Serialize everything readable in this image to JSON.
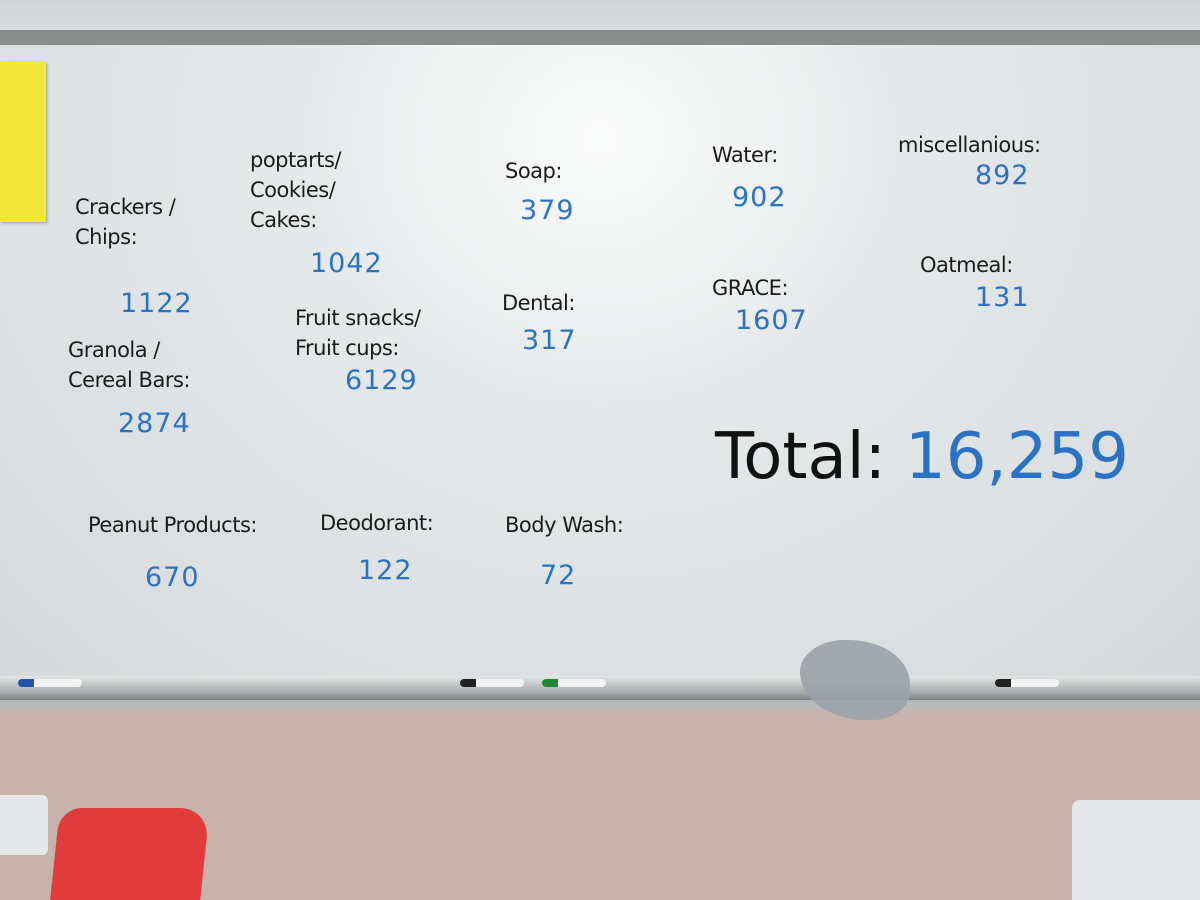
{
  "items": [
    {
      "label": "Crackers /\nChips:",
      "count": "1122"
    },
    {
      "label": "Granola /\nCereal Bars:",
      "count": "2874"
    },
    {
      "label": "Peanut Products:",
      "count": "670"
    },
    {
      "label": "poptarts/\nCookies/\nCakes:",
      "count": "1042"
    },
    {
      "label": "Fruit snacks/\nFruit cups:",
      "count": "6129"
    },
    {
      "label": "Deodorant:",
      "count": "122"
    },
    {
      "label": "Soap:",
      "count": "379"
    },
    {
      "label": "Dental:",
      "count": "317"
    },
    {
      "label": "Body Wash:",
      "count": "72"
    },
    {
      "label": "Water:",
      "count": "902"
    },
    {
      "label": "GRACE:",
      "count": "1607"
    },
    {
      "label": "miscellanious:",
      "count": "892"
    },
    {
      "label": "Oatmeal:",
      "count": "131"
    }
  ],
  "total": {
    "label": "Total:",
    "count": "16,259"
  }
}
